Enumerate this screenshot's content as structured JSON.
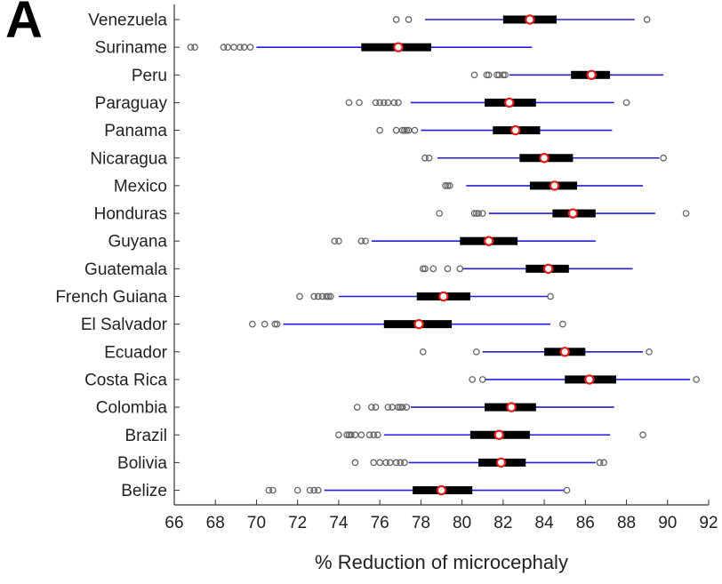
{
  "panel_label": "A",
  "chart_data": {
    "type": "boxplot",
    "orientation": "horizontal",
    "title": "",
    "xlabel": "% Reduction of microcephaly",
    "ylabel": "",
    "xlim": [
      66,
      92
    ],
    "xticks": [
      66,
      68,
      70,
      72,
      74,
      76,
      78,
      80,
      82,
      84,
      86,
      88,
      90,
      92
    ],
    "grid": false,
    "colors": {
      "whisker": "#1f1fd6",
      "box": "#000000",
      "median_marker": "#e0201c",
      "outlier": "#666666"
    },
    "categories": [
      "Venezuela",
      "Suriname",
      "Peru",
      "Paraguay",
      "Panama",
      "Nicaragua",
      "Mexico",
      "Honduras",
      "Guyana",
      "Guatemala",
      "French Guiana",
      "El Salvador",
      "Ecuador",
      "Costa Rica",
      "Colombia",
      "Brazil",
      "Bolivia",
      "Belize"
    ],
    "boxes": [
      {
        "name": "Venezuela",
        "whisker_low": 78.2,
        "q1": 82.0,
        "median": 83.3,
        "q3": 84.6,
        "whisker_high": 88.4,
        "outliers": [
          76.8,
          77.4,
          89.0
        ]
      },
      {
        "name": "Suriname",
        "whisker_low": 70.0,
        "q1": 75.1,
        "median": 76.9,
        "q3": 78.5,
        "whisker_high": 83.4,
        "outliers": [
          66.8,
          67.0,
          68.4,
          68.6,
          68.9,
          69.2,
          69.4,
          69.7
        ]
      },
      {
        "name": "Peru",
        "whisker_low": 82.3,
        "q1": 85.3,
        "median": 86.3,
        "q3": 87.2,
        "whisker_high": 89.8,
        "outliers": [
          80.6,
          81.2,
          81.3,
          81.7,
          81.8,
          82.0,
          82.1
        ]
      },
      {
        "name": "Paraguay",
        "whisker_low": 77.5,
        "q1": 81.1,
        "median": 82.3,
        "q3": 83.6,
        "whisker_high": 87.4,
        "outliers": [
          74.5,
          75.0,
          75.8,
          76.0,
          76.2,
          76.4,
          76.7,
          76.9,
          88.0
        ]
      },
      {
        "name": "Panama",
        "whisker_low": 78.0,
        "q1": 81.5,
        "median": 82.6,
        "q3": 83.8,
        "whisker_high": 87.3,
        "outliers": [
          76.0,
          76.8,
          77.1,
          77.2,
          77.3,
          77.4,
          77.7
        ]
      },
      {
        "name": "Nicaragua",
        "whisker_low": 78.8,
        "q1": 82.8,
        "median": 84.0,
        "q3": 85.4,
        "whisker_high": 89.6,
        "outliers": [
          78.2,
          78.4,
          89.8
        ]
      },
      {
        "name": "Mexico",
        "whisker_low": 80.2,
        "q1": 83.3,
        "median": 84.5,
        "q3": 85.6,
        "whisker_high": 88.8,
        "outliers": [
          79.2,
          79.3,
          79.4
        ]
      },
      {
        "name": "Honduras",
        "whisker_low": 81.3,
        "q1": 84.4,
        "median": 85.4,
        "q3": 86.5,
        "whisker_high": 89.4,
        "outliers": [
          78.9,
          80.6,
          80.7,
          80.8,
          81.0,
          90.9
        ]
      },
      {
        "name": "Guyana",
        "whisker_low": 75.6,
        "q1": 79.9,
        "median": 81.3,
        "q3": 82.7,
        "whisker_high": 86.5,
        "outliers": [
          73.8,
          74.0,
          75.1,
          75.3
        ]
      },
      {
        "name": "Guatemala",
        "whisker_low": 80.0,
        "q1": 83.1,
        "median": 84.2,
        "q3": 85.2,
        "whisker_high": 88.3,
        "outliers": [
          78.1,
          78.2,
          78.6,
          79.3,
          79.9
        ]
      },
      {
        "name": "French Guiana",
        "whisker_low": 74.0,
        "q1": 77.8,
        "median": 79.1,
        "q3": 80.4,
        "whisker_high": 84.2,
        "outliers": [
          72.1,
          72.8,
          73.0,
          73.2,
          73.4,
          73.5,
          73.6,
          84.3
        ]
      },
      {
        "name": "El Salvador",
        "whisker_low": 71.3,
        "q1": 76.2,
        "median": 77.9,
        "q3": 79.5,
        "whisker_high": 84.3,
        "outliers": [
          69.8,
          70.4,
          70.9,
          71.0,
          84.9
        ]
      },
      {
        "name": "Ecuador",
        "whisker_low": 81.0,
        "q1": 84.0,
        "median": 85.0,
        "q3": 86.0,
        "whisker_high": 88.8,
        "outliers": [
          78.1,
          80.7,
          89.1
        ]
      },
      {
        "name": "Costa Rica",
        "whisker_low": 81.1,
        "q1": 85.0,
        "median": 86.2,
        "q3": 87.5,
        "whisker_high": 91.1,
        "outliers": [
          80.5,
          81.0,
          91.4
        ]
      },
      {
        "name": "Colombia",
        "whisker_low": 77.5,
        "q1": 81.1,
        "median": 82.4,
        "q3": 83.6,
        "whisker_high": 87.4,
        "outliers": [
          74.9,
          75.6,
          75.8,
          76.4,
          76.6,
          76.9,
          77.0,
          77.1,
          77.3
        ]
      },
      {
        "name": "Brazil",
        "whisker_low": 76.2,
        "q1": 80.4,
        "median": 81.8,
        "q3": 83.3,
        "whisker_high": 87.2,
        "outliers": [
          74.0,
          74.4,
          74.5,
          74.6,
          74.8,
          75.1,
          75.5,
          75.7,
          75.9,
          88.8
        ]
      },
      {
        "name": "Bolivia",
        "whisker_low": 77.4,
        "q1": 80.8,
        "median": 81.9,
        "q3": 83.1,
        "whisker_high": 86.5,
        "outliers": [
          74.8,
          75.7,
          76.0,
          76.3,
          76.5,
          76.8,
          77.0,
          77.2,
          86.7,
          86.9
        ]
      },
      {
        "name": "Belize",
        "whisker_low": 73.3,
        "q1": 77.6,
        "median": 79.0,
        "q3": 80.5,
        "whisker_high": 85.0,
        "outliers": [
          70.6,
          70.8,
          72.0,
          72.6,
          72.8,
          73.0,
          85.1
        ]
      }
    ]
  }
}
